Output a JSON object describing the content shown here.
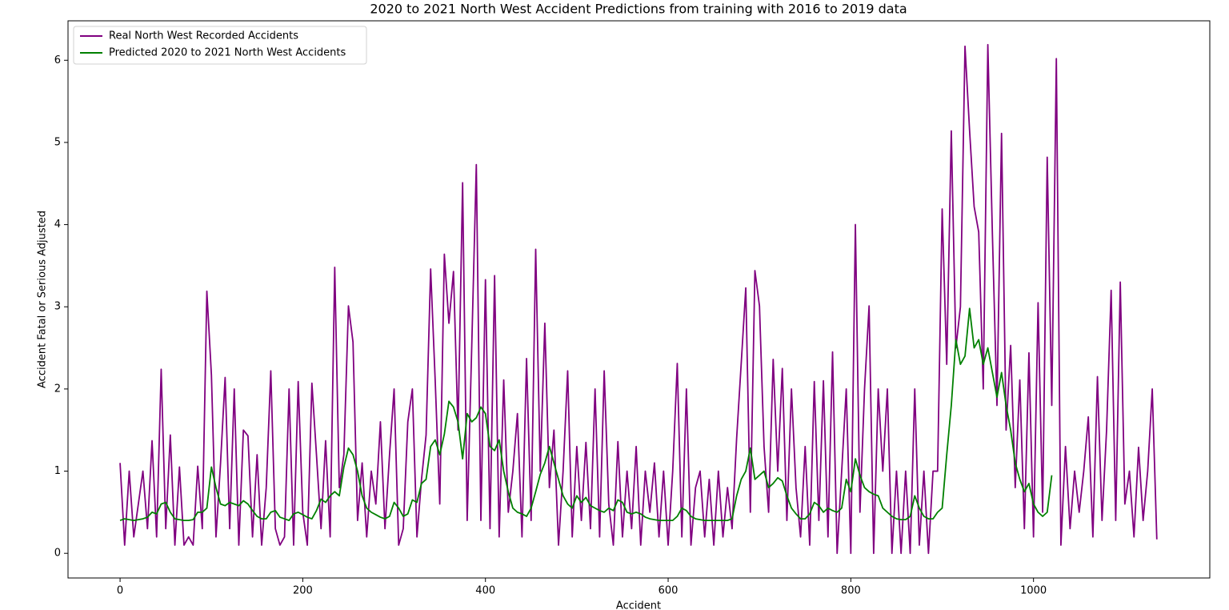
{
  "chart_data": {
    "type": "line",
    "title": "2020 to 2021 North West Accident Predictions from training with 2016 to 2019 data",
    "xlabel": "Accident",
    "ylabel": "Accident Fatal or Serious Adjusted",
    "x": [
      0,
      5,
      10,
      15,
      20,
      25,
      30,
      35,
      40,
      45,
      50,
      55,
      60,
      65,
      70,
      75,
      80,
      85,
      90,
      95,
      100,
      105,
      110,
      115,
      120,
      125,
      130,
      135,
      140,
      145,
      150,
      155,
      160,
      165,
      170,
      175,
      180,
      185,
      190,
      195,
      200,
      205,
      210,
      215,
      220,
      225,
      230,
      235,
      240,
      245,
      250,
      255,
      260,
      265,
      270,
      275,
      280,
      285,
      290,
      295,
      300,
      305,
      310,
      315,
      320,
      325,
      330,
      335,
      340,
      345,
      350,
      355,
      360,
      365,
      370,
      375,
      380,
      385,
      390,
      395,
      400,
      405,
      410,
      415,
      420,
      425,
      430,
      435,
      440,
      445,
      450,
      455,
      460,
      465,
      470,
      475,
      480,
      485,
      490,
      495,
      500,
      505,
      510,
      515,
      520,
      525,
      530,
      535,
      540,
      545,
      550,
      555,
      560,
      565,
      570,
      575,
      580,
      585,
      590,
      595,
      600,
      605,
      610,
      615,
      620,
      625,
      630,
      635,
      640,
      645,
      650,
      655,
      660,
      665,
      670,
      675,
      680,
      685,
      690,
      695,
      700,
      705,
      710,
      715,
      720,
      725,
      730,
      735,
      740,
      745,
      750,
      755,
      760,
      765,
      770,
      775,
      780,
      785,
      790,
      795,
      800,
      805,
      810,
      815,
      820,
      825,
      830,
      835,
      840,
      845,
      850,
      855,
      860,
      865,
      870,
      875,
      880,
      885,
      890,
      895,
      900,
      905,
      910,
      915,
      920,
      925,
      930,
      935,
      940,
      945,
      950,
      955,
      960,
      965,
      970,
      975,
      980,
      985,
      990,
      995,
      1000,
      1005,
      1010,
      1015,
      1020,
      1025,
      1030,
      1035,
      1040,
      1045,
      1050,
      1055,
      1060,
      1065,
      1070,
      1075,
      1080,
      1085,
      1090,
      1095,
      1100,
      1105,
      1110,
      1115,
      1120,
      1125,
      1130,
      1135
    ],
    "series": [
      {
        "name": "Real North West Recorded Accidents",
        "color": "#800080",
        "values": [
          1.1,
          0.1,
          1.0,
          0.2,
          0.6,
          1.0,
          0.3,
          1.37,
          0.2,
          2.24,
          0.3,
          1.44,
          0.1,
          1.05,
          0.1,
          0.2,
          0.1,
          1.06,
          0.3,
          3.19,
          2.17,
          0.2,
          1.1,
          2.14,
          0.3,
          2.0,
          0.1,
          1.5,
          1.43,
          0.2,
          1.2,
          0.1,
          0.8,
          2.22,
          0.3,
          0.1,
          0.2,
          2.0,
          0.1,
          2.09,
          0.5,
          0.1,
          2.07,
          1.2,
          0.3,
          1.37,
          0.2,
          3.48,
          0.8,
          1.2,
          3.01,
          2.57,
          0.4,
          1.1,
          0.2,
          1.0,
          0.6,
          1.6,
          0.3,
          1.2,
          2.0,
          0.1,
          0.3,
          1.6,
          2.0,
          0.2,
          0.9,
          1.44,
          3.46,
          2.1,
          0.6,
          3.64,
          2.8,
          3.43,
          1.5,
          4.51,
          0.4,
          2.52,
          4.73,
          0.4,
          3.33,
          0.3,
          3.38,
          0.2,
          2.11,
          0.5,
          1.0,
          1.7,
          0.2,
          2.37,
          0.4,
          3.7,
          1.0,
          2.8,
          0.8,
          1.5,
          0.1,
          1.0,
          2.22,
          0.2,
          1.3,
          0.4,
          1.35,
          0.3,
          2.0,
          0.2,
          2.22,
          0.6,
          0.1,
          1.36,
          0.2,
          1.0,
          0.3,
          1.3,
          0.1,
          1.0,
          0.5,
          1.1,
          0.2,
          1.0,
          0.1,
          1.0,
          2.31,
          0.2,
          2.0,
          0.1,
          0.8,
          1.0,
          0.2,
          0.9,
          0.1,
          1.0,
          0.2,
          0.8,
          0.3,
          1.4,
          2.31,
          3.23,
          0.5,
          3.44,
          3.01,
          1.3,
          0.5,
          2.36,
          1.0,
          2.25,
          0.4,
          2.0,
          0.8,
          0.2,
          1.3,
          0.1,
          2.09,
          0.4,
          2.1,
          0.2,
          2.45,
          0.0,
          1.0,
          2.0,
          0.0,
          4.0,
          0.5,
          2.0,
          3.01,
          0.0,
          2.0,
          1.0,
          2.0,
          0.0,
          1.0,
          0.0,
          1.0,
          0.0,
          2.0,
          0.1,
          1.0,
          0.0,
          1.0,
          1.0,
          4.19,
          2.3,
          5.14,
          2.5,
          3.0,
          6.17,
          5.15,
          4.22,
          3.91,
          2.0,
          6.19,
          3.88,
          1.8,
          5.11,
          1.5,
          2.53,
          0.8,
          2.11,
          0.3,
          2.44,
          0.2,
          3.05,
          0.5,
          4.82,
          1.8,
          6.02,
          0.1,
          1.3,
          0.3,
          1.0,
          0.5,
          1.0,
          1.66,
          0.2,
          2.15,
          0.4,
          1.5,
          3.2,
          0.4,
          3.3,
          0.6,
          1.0,
          0.2,
          1.29,
          0.4,
          1.0,
          2.0,
          0.17
        ]
      },
      {
        "name": "Predicted 2020 to 2021 North West Accidents",
        "color": "#008000",
        "values": [
          0.4,
          0.42,
          0.41,
          0.4,
          0.41,
          0.42,
          0.44,
          0.5,
          0.48,
          0.6,
          0.62,
          0.5,
          0.42,
          0.41,
          0.4,
          0.4,
          0.41,
          0.5,
          0.5,
          0.55,
          1.05,
          0.8,
          0.6,
          0.58,
          0.62,
          0.6,
          0.58,
          0.64,
          0.6,
          0.52,
          0.45,
          0.42,
          0.42,
          0.5,
          0.52,
          0.44,
          0.42,
          0.4,
          0.48,
          0.5,
          0.47,
          0.44,
          0.42,
          0.52,
          0.66,
          0.62,
          0.7,
          0.75,
          0.7,
          1.05,
          1.28,
          1.2,
          1.0,
          0.7,
          0.55,
          0.5,
          0.47,
          0.44,
          0.42,
          0.45,
          0.62,
          0.55,
          0.45,
          0.48,
          0.65,
          0.62,
          0.85,
          0.9,
          1.3,
          1.38,
          1.2,
          1.45,
          1.85,
          1.78,
          1.6,
          1.15,
          1.7,
          1.6,
          1.65,
          1.78,
          1.7,
          1.3,
          1.25,
          1.38,
          1.0,
          0.75,
          0.55,
          0.5,
          0.48,
          0.45,
          0.55,
          0.75,
          0.96,
          1.1,
          1.3,
          1.1,
          0.9,
          0.7,
          0.6,
          0.55,
          0.7,
          0.62,
          0.68,
          0.58,
          0.55,
          0.52,
          0.5,
          0.55,
          0.52,
          0.65,
          0.62,
          0.5,
          0.48,
          0.5,
          0.48,
          0.44,
          0.42,
          0.41,
          0.4,
          0.4,
          0.4,
          0.4,
          0.45,
          0.55,
          0.52,
          0.45,
          0.42,
          0.41,
          0.4,
          0.4,
          0.4,
          0.4,
          0.4,
          0.4,
          0.42,
          0.7,
          0.9,
          1.0,
          1.28,
          0.9,
          0.95,
          1.0,
          0.8,
          0.85,
          0.92,
          0.88,
          0.7,
          0.55,
          0.48,
          0.42,
          0.42,
          0.48,
          0.62,
          0.58,
          0.5,
          0.55,
          0.52,
          0.5,
          0.55,
          0.9,
          0.75,
          1.15,
          0.95,
          0.8,
          0.75,
          0.72,
          0.7,
          0.55,
          0.5,
          0.45,
          0.42,
          0.41,
          0.41,
          0.45,
          0.7,
          0.55,
          0.45,
          0.42,
          0.42,
          0.5,
          0.55,
          1.2,
          1.8,
          2.6,
          2.3,
          2.4,
          2.98,
          2.5,
          2.6,
          2.3,
          2.5,
          2.2,
          1.9,
          2.2,
          1.8,
          1.5,
          1.1,
          0.9,
          0.75,
          0.85,
          0.6,
          0.5,
          0.45,
          0.5,
          0.95,
          null,
          null,
          null,
          null,
          null,
          null,
          null,
          null,
          null,
          null,
          null,
          null,
          null,
          null,
          null,
          null,
          null,
          null,
          null,
          null,
          null,
          null,
          null
        ]
      }
    ],
    "xlim": [
      -57,
      1193
    ],
    "ylim": [
      -0.3,
      6.48
    ],
    "xticks": [
      0,
      200,
      400,
      600,
      800,
      1000
    ],
    "yticks": [
      0,
      1,
      2,
      3,
      4,
      5,
      6
    ],
    "legend": "upper left"
  }
}
